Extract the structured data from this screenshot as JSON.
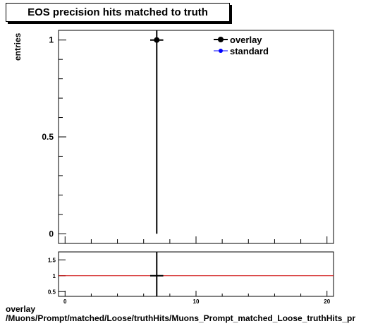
{
  "chart_data": {
    "type": "scatter",
    "title": "EOS precision hits matched to truth",
    "ylabel": "entries",
    "xlabel": "",
    "xlim": [
      -0.5,
      20.5
    ],
    "ylim": [
      -0.05,
      1.05
    ],
    "yticks": [
      "0",
      "0.5",
      "1"
    ],
    "legend_placement": "top-right",
    "series": [
      {
        "name": "overlay",
        "color": "#000000",
        "x": [
          7
        ],
        "y": [
          1
        ],
        "xerr": [
          0.5
        ],
        "yerr": [
          1
        ]
      },
      {
        "name": "standard",
        "color": "#0000ff",
        "x": [],
        "y": []
      }
    ],
    "ratio_panel": {
      "ylim": [
        0.35,
        1.75
      ],
      "yticks": [
        "0.5",
        "1",
        "1.5"
      ],
      "xticks": [
        "0",
        "10",
        "20"
      ],
      "reference_line": 1,
      "reference_color": "#cc0000",
      "x": [
        7
      ],
      "y": [
        1
      ],
      "xerr": [
        0.5
      ]
    }
  },
  "footer": {
    "line1": "overlay",
    "line2": "/Muons/Prompt/matched/Loose/truthHits/Muons_Prompt_matched_Loose_truthHits_pr"
  }
}
